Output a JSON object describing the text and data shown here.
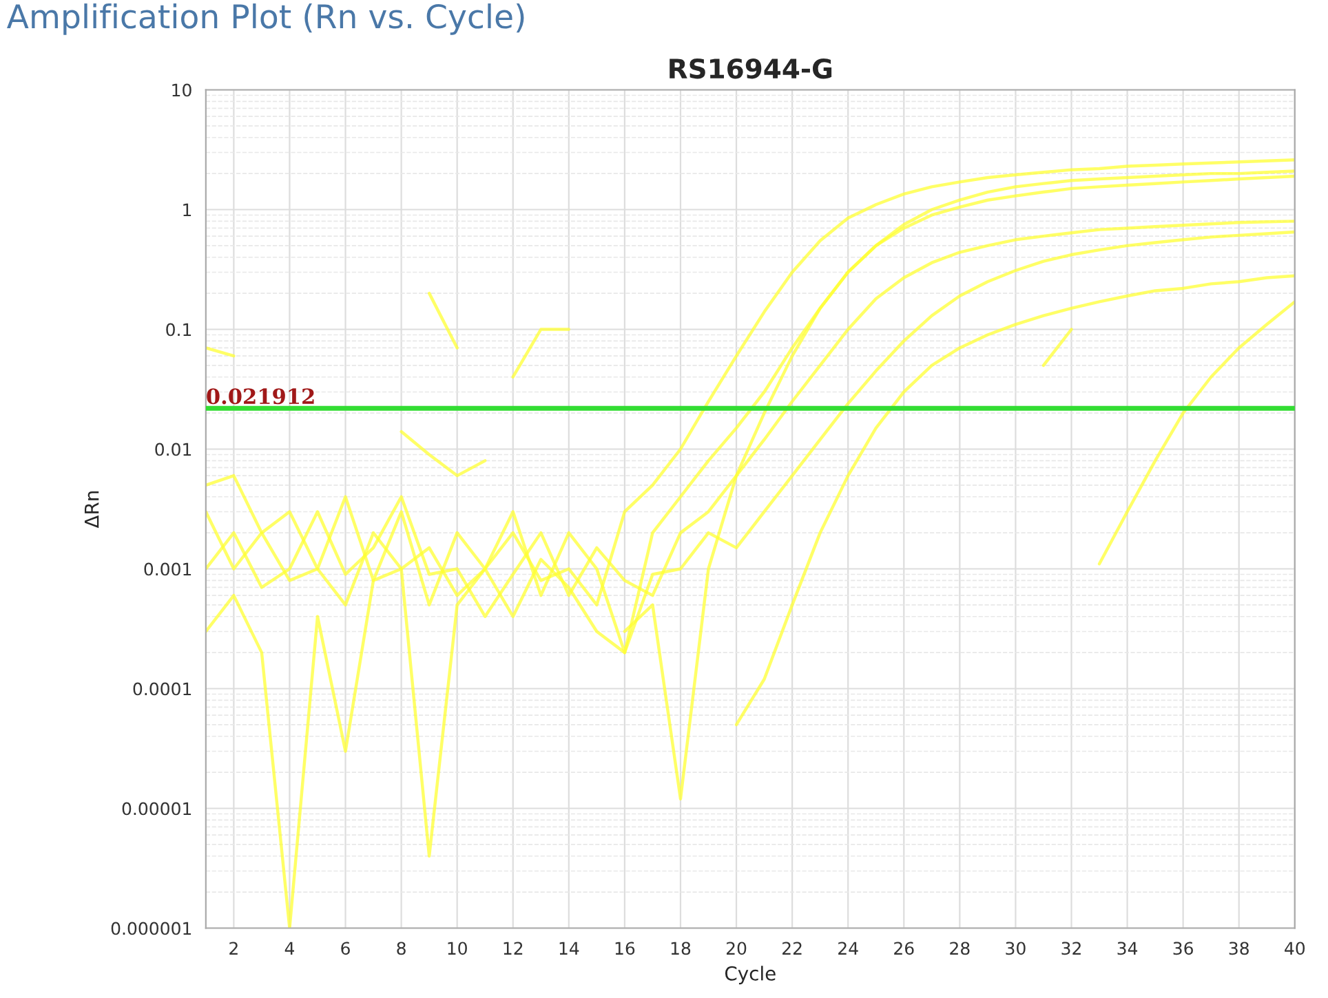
{
  "chart_data": {
    "type": "line",
    "title": "Amplification Plot (Rn vs. Cycle)",
    "subtitle": "RS16944-G",
    "xlabel": "Cycle",
    "ylabel": "ΔRn",
    "log": "y",
    "grid": true,
    "legend": false,
    "marker": "none",
    "line_style": "solid",
    "xlim": [
      1,
      40
    ],
    "xticks": [
      2,
      4,
      6,
      8,
      10,
      12,
      14,
      16,
      18,
      20,
      22,
      24,
      26,
      28,
      30,
      32,
      34,
      36,
      38,
      40
    ],
    "ylim": [
      1e-06,
      10
    ],
    "yticks": [
      {
        "value": 1e-06,
        "label": "0.000001"
      },
      {
        "value": 1e-05,
        "label": "0.00001"
      },
      {
        "value": 0.0001,
        "label": "0.0001"
      },
      {
        "value": 0.001,
        "label": "0.001"
      },
      {
        "value": 0.01,
        "label": "0.01"
      },
      {
        "value": 0.1,
        "label": "0.1"
      },
      {
        "value": 1,
        "label": "1"
      },
      {
        "value": 10,
        "label": "10"
      }
    ],
    "ref_lines": [
      {
        "axis": "y",
        "value": 0.021912,
        "label": "0.021912",
        "color": "#33dd33"
      }
    ],
    "series": [
      {
        "color": "#ffff33",
        "x": [
          1,
          2,
          3,
          4,
          5,
          6,
          7,
          8,
          9,
          10,
          11,
          12,
          13,
          14,
          15,
          16,
          17,
          18,
          19,
          20,
          21,
          22,
          23,
          24,
          25,
          26,
          27,
          28,
          29,
          30,
          31,
          32,
          33,
          34,
          35,
          36,
          37,
          38,
          39,
          40
        ],
        "values": [
          0.003,
          0.001,
          0.002,
          0.0008,
          0.001,
          0.0005,
          0.002,
          0.001,
          0.0015,
          0.0006,
          0.001,
          0.002,
          0.0008,
          0.001,
          0.0005,
          0.003,
          0.005,
          0.01,
          0.025,
          0.06,
          0.14,
          0.3,
          0.55,
          0.85,
          1.1,
          1.35,
          1.55,
          1.7,
          1.85,
          1.95,
          2.05,
          2.15,
          2.2,
          2.3,
          2.35,
          2.4,
          2.45,
          2.5,
          2.55,
          2.6
        ]
      },
      {
        "color": "#ffff33",
        "x": [
          1,
          2,
          3,
          4,
          5,
          6,
          7,
          8,
          9,
          10,
          11,
          12,
          13,
          14,
          15,
          16,
          17,
          18,
          19,
          20,
          21,
          22,
          23,
          24,
          25,
          26,
          27,
          28,
          29,
          30,
          31,
          32,
          33,
          34,
          35,
          36,
          37,
          38,
          39,
          40
        ],
        "values": [
          0.005,
          0.006,
          0.002,
          0.003,
          0.001,
          0.004,
          0.0008,
          0.003,
          0.0005,
          0.002,
          0.001,
          0.003,
          0.0006,
          0.002,
          0.001,
          0.0002,
          0.002,
          0.004,
          0.008,
          0.015,
          0.03,
          0.07,
          0.15,
          0.3,
          0.5,
          0.75,
          1.0,
          1.2,
          1.4,
          1.55,
          1.65,
          1.75,
          1.8,
          1.85,
          1.9,
          1.95,
          2.0,
          2.0,
          2.05,
          2.1
        ]
      },
      {
        "color": "#ffff33",
        "x": [
          1,
          2,
          3,
          4,
          5,
          6,
          7,
          8,
          9,
          10,
          11,
          12,
          13,
          14,
          15,
          16,
          17,
          18,
          19,
          20,
          21,
          22,
          23,
          24,
          25,
          26,
          27,
          28,
          29,
          30,
          31,
          32,
          33,
          34,
          35,
          36,
          37,
          38,
          39,
          40
        ],
        "values": [
          0.001,
          0.002,
          0.0007,
          0.001,
          0.003,
          0.0009,
          0.0015,
          0.004,
          0.0009,
          0.001,
          0.0004,
          0.0009,
          0.002,
          0.0006,
          0.0015,
          0.0008,
          0.0006,
          0.002,
          0.003,
          0.006,
          0.012,
          0.025,
          0.05,
          0.1,
          0.18,
          0.27,
          0.36,
          0.44,
          0.5,
          0.56,
          0.6,
          0.64,
          0.68,
          0.7,
          0.72,
          0.74,
          0.76,
          0.78,
          0.79,
          0.8
        ]
      },
      {
        "color": "#ffff33",
        "x": [
          1,
          2,
          3,
          4,
          5,
          6,
          7,
          8,
          9,
          10,
          11,
          12,
          13,
          14,
          15,
          16,
          17,
          18,
          19,
          20,
          21,
          22,
          23,
          24,
          25,
          26,
          27,
          28,
          29,
          30,
          31,
          32,
          33,
          34,
          35,
          36,
          37,
          38,
          39,
          40
        ],
        "values": [
          0.0003,
          0.0006,
          0.0002,
          1e-06,
          0.0004,
          3e-05,
          0.0008,
          0.001,
          4e-06,
          0.0005,
          0.001,
          0.0004,
          0.0012,
          0.0007,
          0.0003,
          0.0002,
          0.0009,
          0.001,
          0.002,
          0.0015,
          0.003,
          0.006,
          0.012,
          0.024,
          0.045,
          0.08,
          0.13,
          0.19,
          0.25,
          0.31,
          0.37,
          0.42,
          0.46,
          0.5,
          0.53,
          0.56,
          0.59,
          0.61,
          0.63,
          0.65
        ]
      },
      {
        "color": "#ffff33",
        "x": [
          16,
          17,
          18,
          19,
          20,
          21,
          22,
          23,
          24,
          25,
          26,
          27,
          28,
          29,
          30,
          31,
          32,
          33,
          34,
          35,
          36,
          37,
          38,
          39,
          40
        ],
        "values": [
          0.0003,
          0.0005,
          1.2e-05,
          0.001,
          0.006,
          0.02,
          0.06,
          0.15,
          0.3,
          0.5,
          0.7,
          0.9,
          1.05,
          1.2,
          1.3,
          1.4,
          1.5,
          1.55,
          1.6,
          1.65,
          1.7,
          1.75,
          1.8,
          1.85,
          1.9
        ]
      },
      {
        "color": "#ffff33",
        "x": [
          20,
          21,
          22,
          23,
          24,
          25,
          26,
          27,
          28,
          29,
          30,
          31,
          32,
          33,
          34,
          35,
          36,
          37,
          38,
          39,
          40
        ],
        "values": [
          5e-05,
          0.00012,
          0.0005,
          0.002,
          0.006,
          0.015,
          0.03,
          0.05,
          0.07,
          0.09,
          0.11,
          0.13,
          0.15,
          0.17,
          0.19,
          0.21,
          0.22,
          0.24,
          0.25,
          0.27,
          0.28
        ]
      },
      {
        "color": "#ffff33",
        "x": [
          33,
          34,
          35,
          36,
          37,
          38,
          39,
          40
        ],
        "values": [
          0.0011,
          0.003,
          0.008,
          0.02,
          0.04,
          0.07,
          0.11,
          0.17
        ]
      },
      {
        "color": "#ffff33",
        "x": [
          1,
          2
        ],
        "values": [
          0.07,
          0.06
        ]
      },
      {
        "color": "#ffff33",
        "x": [
          9,
          10
        ],
        "values": [
          0.2,
          0.07
        ]
      },
      {
        "color": "#ffff33",
        "x": [
          12,
          13,
          14
        ],
        "values": [
          0.04,
          0.1,
          0.1
        ]
      },
      {
        "color": "#ffff33",
        "x": [
          8,
          9,
          10,
          11
        ],
        "values": [
          0.014,
          0.009,
          0.006,
          0.008
        ]
      },
      {
        "color": "#ffff33",
        "x": [
          31,
          32
        ],
        "values": [
          0.05,
          0.1
        ]
      }
    ]
  }
}
